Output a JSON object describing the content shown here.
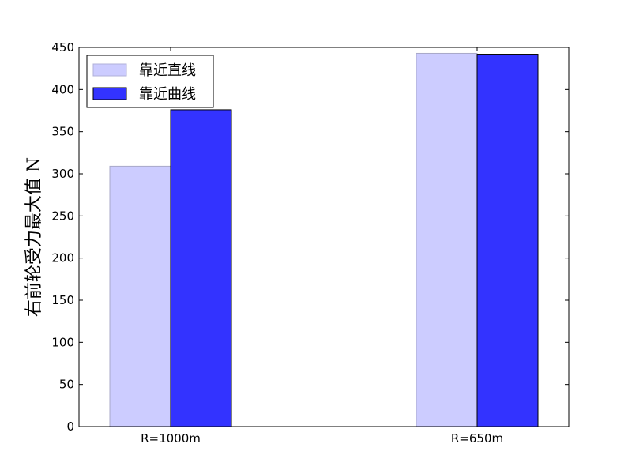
{
  "chart_data": {
    "type": "bar",
    "categories": [
      "R=1000m",
      "R=650m"
    ],
    "series": [
      {
        "name": "靠近直线",
        "values": [
          309,
          443
        ],
        "color": "#ccccff"
      },
      {
        "name": "靠近曲线",
        "values": [
          376,
          442
        ],
        "color": "#3333ff"
      }
    ],
    "ylabel": "右前轮受力最大值 N",
    "ylim": [
      0,
      450
    ],
    "yticks": [
      0,
      50,
      100,
      150,
      200,
      250,
      300,
      350,
      400,
      450
    ],
    "legend": "top-left",
    "grid": false
  }
}
